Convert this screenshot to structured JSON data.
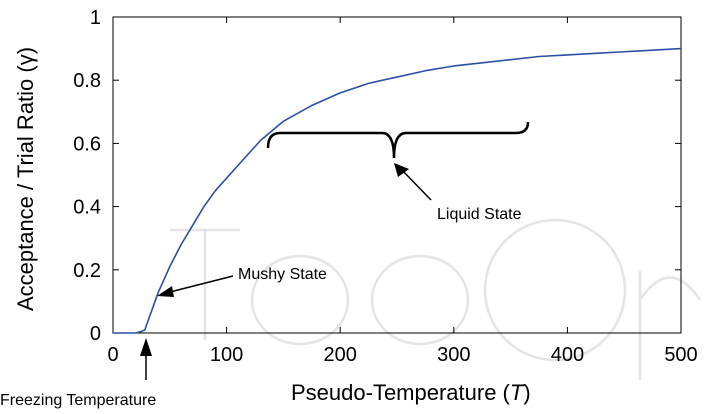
{
  "chart_data": {
    "type": "line",
    "xlabel_main": "Pseudo-Temperature (",
    "xlabel_symbol": "T",
    "xlabel_close": ")",
    "ylabel": "Acceptance / Trial Ratio (γ)",
    "xlim": [
      0,
      500
    ],
    "ylim": [
      0,
      1
    ],
    "x_ticks": [
      "0",
      "100",
      "200",
      "300",
      "400",
      "500"
    ],
    "y_ticks": [
      "0",
      "0.2",
      "0.4",
      "0.6",
      "0.8",
      "1"
    ],
    "grid": false,
    "series_color": "#2b4fa6",
    "series": [
      {
        "x": [
          0,
          10,
          20,
          25,
          28,
          30,
          33,
          36,
          40,
          45,
          50,
          60,
          70,
          80,
          90,
          100,
          110,
          120,
          130,
          140,
          150,
          160,
          175,
          200,
          225,
          250,
          275,
          300,
          325,
          350,
          375,
          400,
          425,
          450,
          475,
          500
        ],
        "y": [
          0.0,
          0.0,
          0.0,
          0.005,
          0.01,
          0.03,
          0.06,
          0.09,
          0.13,
          0.17,
          0.21,
          0.28,
          0.34,
          0.4,
          0.45,
          0.49,
          0.53,
          0.57,
          0.61,
          0.64,
          0.67,
          0.69,
          0.72,
          0.76,
          0.79,
          0.81,
          0.83,
          0.845,
          0.855,
          0.865,
          0.875,
          0.88,
          0.885,
          0.89,
          0.895,
          0.9
        ]
      }
    ],
    "annotations": [
      {
        "text": "Mushy State",
        "x": 35,
        "y": 0.1
      },
      {
        "text": "Liquid State",
        "x": 245,
        "y": 0.55
      },
      {
        "text": "Freezing Temperature",
        "x": 28,
        "y": 0
      }
    ]
  }
}
